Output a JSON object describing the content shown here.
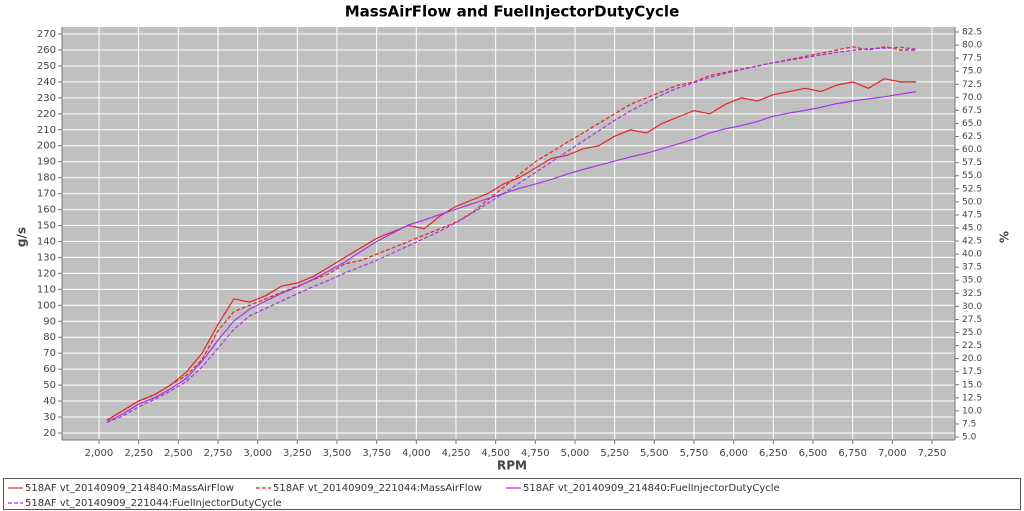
{
  "chart_data": {
    "type": "line",
    "title": "MassAirFlow and FuelInjectorDutyCycle",
    "x_label": "RPM",
    "y_label": "g/s",
    "y2_label": "%",
    "grid": true,
    "legend": "bottom",
    "xlim": [
      1767,
      7395
    ],
    "ylim": [
      15.6,
      274.4
    ],
    "y2lim": [
      4.43,
      83.46
    ],
    "xticks": [
      {
        "value": 2000,
        "label": "2,000"
      },
      {
        "value": 2250,
        "label": "2,250"
      },
      {
        "value": 2500,
        "label": "2,500"
      },
      {
        "value": 2750,
        "label": "2,750"
      },
      {
        "value": 3000,
        "label": "3,000"
      },
      {
        "value": 3250,
        "label": "3,250"
      },
      {
        "value": 3500,
        "label": "3,500"
      },
      {
        "value": 3750,
        "label": "3,750"
      },
      {
        "value": 4000,
        "label": "4,000"
      },
      {
        "value": 4250,
        "label": "4,250"
      },
      {
        "value": 4500,
        "label": "4,500"
      },
      {
        "value": 4750,
        "label": "4,750"
      },
      {
        "value": 5000,
        "label": "5,000"
      },
      {
        "value": 5250,
        "label": "5,250"
      },
      {
        "value": 5500,
        "label": "5,500"
      },
      {
        "value": 5750,
        "label": "5,750"
      },
      {
        "value": 6000,
        "label": "6,000"
      },
      {
        "value": 6250,
        "label": "6,250"
      },
      {
        "value": 6500,
        "label": "6,500"
      },
      {
        "value": 6750,
        "label": "6,750"
      },
      {
        "value": 7000,
        "label": "7,000"
      },
      {
        "value": 7250,
        "label": "7,250"
      }
    ],
    "yticks": [
      20,
      30,
      40,
      50,
      60,
      70,
      80,
      90,
      100,
      110,
      120,
      130,
      140,
      150,
      160,
      170,
      180,
      190,
      200,
      210,
      220,
      230,
      240,
      250,
      260,
      270
    ],
    "y2ticks": [
      {
        "value": 5,
        "label": "5.0"
      },
      7.5,
      {
        "value": 10,
        "label": "10.0"
      },
      12.5,
      {
        "value": 15,
        "label": "15.0"
      },
      17.5,
      {
        "value": 20,
        "label": "20.0"
      },
      22.5,
      {
        "value": 25,
        "label": "25.0"
      },
      27.5,
      {
        "value": 30,
        "label": "30.0"
      },
      32.5,
      {
        "value": 35,
        "label": "35.0"
      },
      37.5,
      {
        "value": 40,
        "label": "40.0"
      },
      42.5,
      {
        "value": 45,
        "label": "45.0"
      },
      47.5,
      {
        "value": 50,
        "label": "50.0"
      },
      52.5,
      {
        "value": 55,
        "label": "55.0"
      },
      57.5,
      {
        "value": 60,
        "label": "60.0"
      },
      62.5,
      {
        "value": 65,
        "label": "65.0"
      },
      67.5,
      {
        "value": 70,
        "label": "70.0"
      },
      72.5,
      {
        "value": 75,
        "label": "75.0"
      },
      77.5,
      {
        "value": 80,
        "label": "80.0"
      },
      82.5
    ],
    "x": [
      2050,
      2150,
      2250,
      2350,
      2450,
      2550,
      2650,
      2750,
      2850,
      2950,
      3050,
      3150,
      3250,
      3350,
      3450,
      3550,
      3650,
      3750,
      3850,
      3950,
      4050,
      4150,
      4250,
      4350,
      4450,
      4550,
      4650,
      4750,
      4850,
      4950,
      5050,
      5150,
      5250,
      5350,
      5450,
      5550,
      5650,
      5750,
      5850,
      5950,
      6050,
      6150,
      6250,
      6350,
      6450,
      6550,
      6650,
      6750,
      6850,
      6950,
      7050,
      7150
    ],
    "series": [
      {
        "name": "518AF vt_20140909_214840:MassAirFlow",
        "color": "#e32626",
        "dashed": false,
        "axis": "y",
        "values": [
          28,
          34,
          40,
          44,
          50,
          58,
          70,
          88,
          104,
          102,
          106,
          112,
          114,
          118,
          124,
          130,
          136,
          142,
          146,
          150,
          148,
          156,
          162,
          166,
          170,
          176,
          180,
          186,
          192,
          194,
          198,
          200,
          206,
          210,
          208,
          214,
          218,
          222,
          220,
          226,
          230,
          228,
          232,
          234,
          236,
          234,
          238,
          240,
          236,
          242,
          240,
          240
        ]
      },
      {
        "name": "518AF vt_20140909_221044:MassAirFlow",
        "color": "#e32626",
        "dashed": true,
        "axis": "y",
        "values": [
          28,
          34,
          40,
          44,
          50,
          56,
          66,
          84,
          96,
          100,
          104,
          108,
          112,
          116,
          120,
          126,
          128,
          132,
          136,
          140,
          144,
          148,
          152,
          158,
          166,
          174,
          182,
          190,
          196,
          202,
          208,
          214,
          220,
          226,
          230,
          234,
          238,
          240,
          244,
          246,
          248,
          250,
          252,
          254,
          256,
          258,
          260,
          262,
          260,
          262,
          260,
          260
        ]
      },
      {
        "name": "518AF vt_20140909_214840:FuelInjectorDutyCycle",
        "color": "#a834e8",
        "dashed": false,
        "axis": "y2",
        "values": [
          7.9,
          9.4,
          11.3,
          12.5,
          14.2,
          16.2,
          19.5,
          23.5,
          27.2,
          29.5,
          31.0,
          32.5,
          33.7,
          35.2,
          36.8,
          38.5,
          40.5,
          42.4,
          44.0,
          45.6,
          46.5,
          47.6,
          48.6,
          49.6,
          50.6,
          51.6,
          52.6,
          53.4,
          54.3,
          55.3,
          56.2,
          57.0,
          57.8,
          58.6,
          59.3,
          60.2,
          61.1,
          62.0,
          63.2,
          64.0,
          64.6,
          65.4,
          66.4,
          67.0,
          67.5,
          68.1,
          68.8,
          69.3,
          69.7,
          70.1,
          70.6,
          71.1
        ]
      },
      {
        "name": "518AF vt_20140909_221044:FuelInjectorDutyCycle",
        "color": "#a834e8",
        "dashed": true,
        "axis": "y2",
        "values": [
          7.8,
          9.0,
          10.8,
          12.2,
          13.8,
          15.6,
          18.4,
          22.0,
          25.6,
          28.2,
          29.6,
          31.0,
          32.4,
          33.8,
          35.0,
          36.4,
          37.6,
          38.8,
          40.2,
          41.6,
          43.0,
          44.4,
          46.0,
          47.8,
          49.7,
          51.6,
          53.6,
          55.6,
          57.6,
          59.6,
          61.6,
          63.6,
          65.6,
          67.4,
          69.0,
          70.5,
          71.8,
          72.8,
          73.8,
          74.6,
          75.3,
          76.0,
          76.6,
          77.1,
          77.6,
          78.1,
          78.6,
          79.0,
          79.3,
          79.4,
          79.6,
          79.2
        ]
      }
    ]
  }
}
